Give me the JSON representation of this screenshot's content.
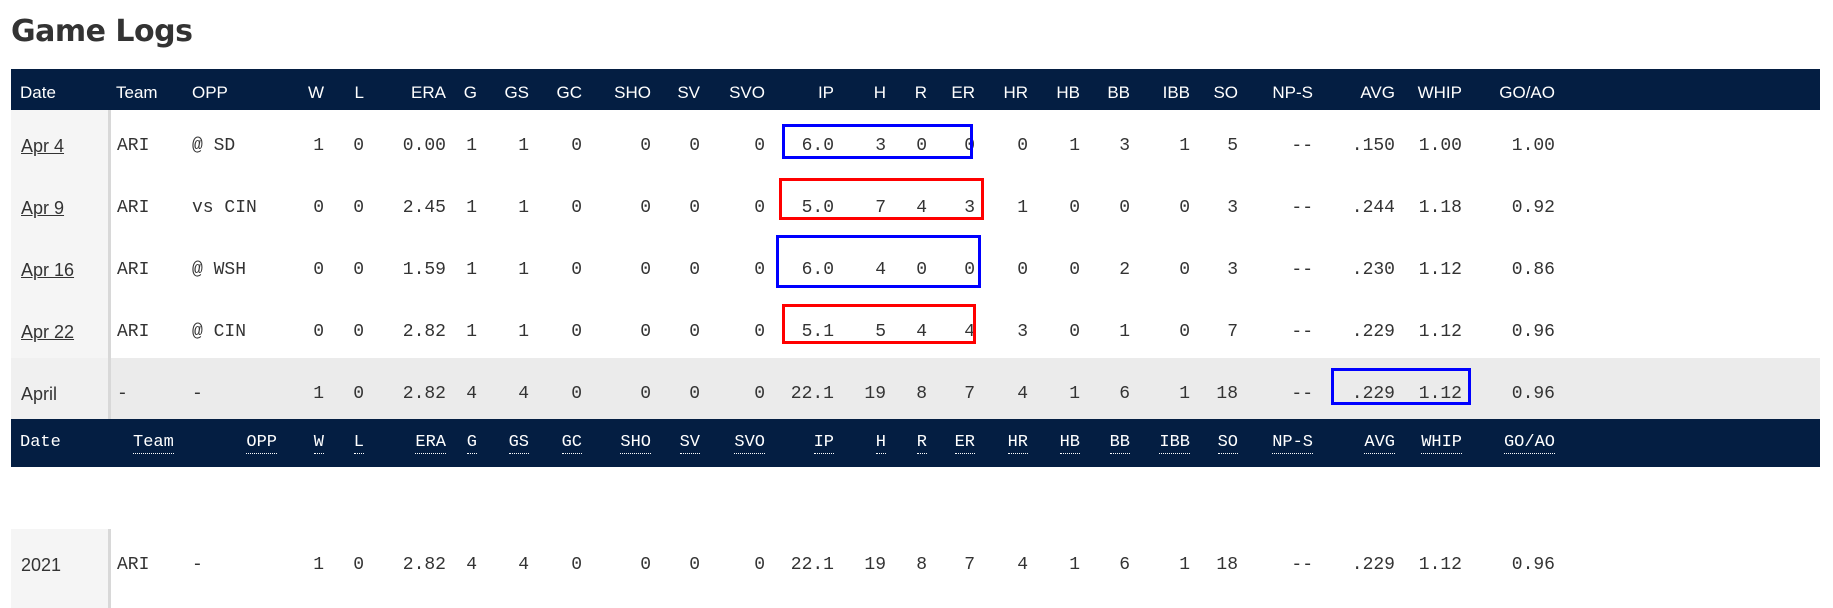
{
  "page_title": "Game Logs",
  "columns": [
    "Date",
    "Team",
    "OPP",
    "W",
    "L",
    "ERA",
    "G",
    "GS",
    "GC",
    "SHO",
    "SV",
    "SVO",
    "IP",
    "H",
    "R",
    "ER",
    "HR",
    "HB",
    "BB",
    "IBB",
    "SO",
    "NP-S",
    "AVG",
    "WHIP",
    "GO/AO"
  ],
  "game_rows": [
    {
      "date": "Apr 4",
      "team": "ARI",
      "opp": "@ SD",
      "w": "1",
      "l": "0",
      "era": "0.00",
      "g": "1",
      "gs": "1",
      "gc": "0",
      "sho": "0",
      "sv": "0",
      "svo": "0",
      "ip": "6.0",
      "h": "3",
      "r": "0",
      "er": "0",
      "hr": "0",
      "hb": "1",
      "bb": "3",
      "ibb": "1",
      "so": "5",
      "nps": "--",
      "avg": ".150",
      "whip": "1.00",
      "goao": "1.00"
    },
    {
      "date": "Apr 9",
      "team": "ARI",
      "opp": "vs CIN",
      "w": "0",
      "l": "0",
      "era": "2.45",
      "g": "1",
      "gs": "1",
      "gc": "0",
      "sho": "0",
      "sv": "0",
      "svo": "0",
      "ip": "5.0",
      "h": "7",
      "r": "4",
      "er": "3",
      "hr": "1",
      "hb": "0",
      "bb": "0",
      "ibb": "0",
      "so": "3",
      "nps": "--",
      "avg": ".244",
      "whip": "1.18",
      "goao": "0.92"
    },
    {
      "date": "Apr 16",
      "team": "ARI",
      "opp": "@ WSH",
      "w": "0",
      "l": "0",
      "era": "1.59",
      "g": "1",
      "gs": "1",
      "gc": "0",
      "sho": "0",
      "sv": "0",
      "svo": "0",
      "ip": "6.0",
      "h": "4",
      "r": "0",
      "er": "0",
      "hr": "0",
      "hb": "0",
      "bb": "2",
      "ibb": "0",
      "so": "3",
      "nps": "--",
      "avg": ".230",
      "whip": "1.12",
      "goao": "0.86"
    },
    {
      "date": "Apr 22",
      "team": "ARI",
      "opp": "@ CIN",
      "w": "0",
      "l": "0",
      "era": "2.82",
      "g": "1",
      "gs": "1",
      "gc": "0",
      "sho": "0",
      "sv": "0",
      "svo": "0",
      "ip": "5.1",
      "h": "5",
      "r": "4",
      "er": "4",
      "hr": "3",
      "hb": "0",
      "bb": "1",
      "ibb": "0",
      "so": "7",
      "nps": "--",
      "avg": ".229",
      "whip": "1.12",
      "goao": "0.96"
    }
  ],
  "month_row": {
    "date": "April",
    "team": "-",
    "opp": "-",
    "w": "1",
    "l": "0",
    "era": "2.82",
    "g": "4",
    "gs": "4",
    "gc": "0",
    "sho": "0",
    "sv": "0",
    "svo": "0",
    "ip": "22.1",
    "h": "19",
    "r": "8",
    "er": "7",
    "hr": "4",
    "hb": "1",
    "bb": "6",
    "ibb": "1",
    "so": "18",
    "nps": "--",
    "avg": ".229",
    "whip": "1.12",
    "goao": "0.96"
  },
  "season_row": {
    "date": "2021",
    "team": "ARI",
    "opp": "-",
    "w": "1",
    "l": "0",
    "era": "2.82",
    "g": "4",
    "gs": "4",
    "gc": "0",
    "sho": "0",
    "sv": "0",
    "svo": "0",
    "ip": "22.1",
    "h": "19",
    "r": "8",
    "er": "7",
    "hr": "4",
    "hb": "1",
    "bb": "6",
    "ibb": "1",
    "so": "18",
    "nps": "--",
    "avg": ".229",
    "whip": "1.12",
    "goao": "0.96"
  },
  "colors": {
    "header_bg": "#041e42",
    "header_text": "#ffffff",
    "summary_bg": "#ebebeb",
    "highlight_blue": "#0000ff",
    "highlight_red": "#ff0000"
  }
}
